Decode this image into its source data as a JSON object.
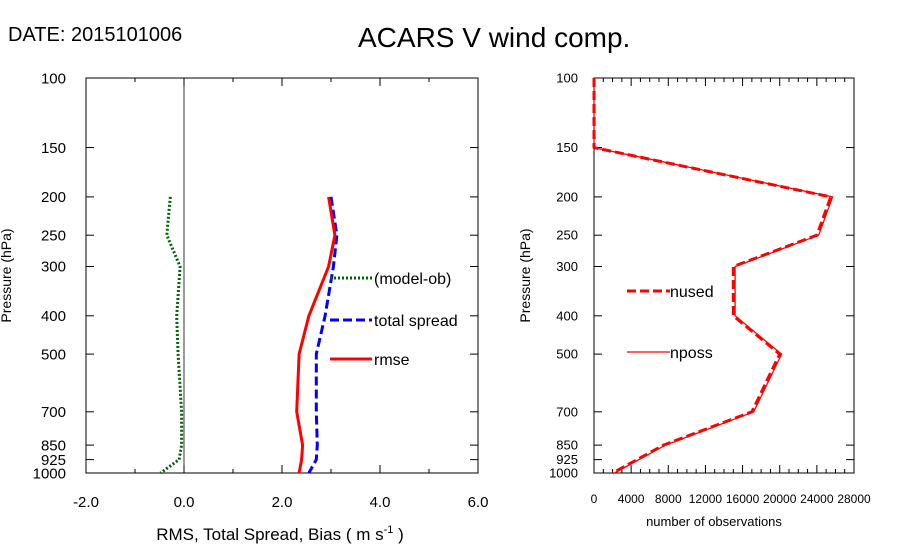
{
  "header": {
    "date_label": "DATE: 2015101006",
    "title": "ACARS V wind comp."
  },
  "chart_data": [
    {
      "type": "line",
      "title": "ACARS V wind comp.",
      "xlabel": "RMS, Total Spread, Bias ( m s",
      "xlabel_superscript": "-1",
      "xlabel_suffix": " )",
      "ylabel": "Pressure (hPa)",
      "xlim": [
        -2.0,
        6.0
      ],
      "ylim": [
        100,
        1000
      ],
      "y_scale": "log",
      "y_inverted": true,
      "x_ticks": [
        -2.0,
        0.0,
        2.0,
        4.0,
        6.0
      ],
      "x_tick_labels": [
        "-2.0",
        "0.0",
        "2.0",
        "4.0",
        "6.0"
      ],
      "y_ticks": [
        100,
        150,
        200,
        250,
        300,
        400,
        500,
        700,
        850,
        925,
        1000
      ],
      "y_tick_labels": [
        "100",
        "150",
        "200",
        "250",
        "300",
        "400",
        "500",
        "700",
        "850",
        "925",
        "1000"
      ],
      "zero_line": 0.0,
      "series": [
        {
          "name": "(model-ob)",
          "color": "#006400",
          "style": "dotted",
          "pressure": [
            200,
            250,
            300,
            400,
            500,
            700,
            850,
            925,
            1000
          ],
          "values": [
            -0.28,
            -0.35,
            -0.08,
            -0.15,
            -0.12,
            -0.05,
            -0.05,
            -0.1,
            -0.48
          ]
        },
        {
          "name": "total spread",
          "color": "#0000ff",
          "style": "dashed",
          "pressure": [
            200,
            250,
            300,
            400,
            500,
            700,
            850,
            925,
            1000
          ],
          "values": [
            3.0,
            3.12,
            3.05,
            2.88,
            2.7,
            2.7,
            2.72,
            2.7,
            2.55
          ]
        },
        {
          "name": "rmse",
          "color": "#ff0000",
          "style": "solid",
          "pressure": [
            200,
            250,
            300,
            400,
            500,
            700,
            850,
            925,
            1000
          ],
          "values": [
            2.95,
            3.08,
            2.95,
            2.55,
            2.35,
            2.3,
            2.42,
            2.4,
            2.35
          ]
        }
      ],
      "legend": [
        "(model-ob)",
        "total spread",
        "rmse"
      ]
    },
    {
      "type": "line",
      "xlabel": "number of observations",
      "ylabel": "Pressure (hPa)",
      "xlim": [
        0,
        28000
      ],
      "ylim": [
        100,
        1000
      ],
      "y_scale": "log",
      "y_inverted": true,
      "x_ticks": [
        0,
        4000,
        8000,
        12000,
        16000,
        20000,
        24000,
        28000
      ],
      "x_tick_labels": [
        "0",
        "4000",
        "8000",
        "12000",
        "16000",
        "20000",
        "24000",
        "28000"
      ],
      "y_ticks": [
        100,
        150,
        200,
        250,
        300,
        400,
        500,
        700,
        850,
        925,
        1000
      ],
      "y_tick_labels": [
        "100",
        "150",
        "200",
        "250",
        "300",
        "400",
        "500",
        "700",
        "850",
        "925",
        "1000"
      ],
      "series": [
        {
          "name": "nused",
          "color": "#ff0000",
          "style": "dashed",
          "pressure": [
            100,
            150,
            200,
            250,
            300,
            400,
            500,
            700,
            850,
            1000
          ],
          "values": [
            0,
            0,
            25500,
            24000,
            15000,
            15000,
            20000,
            17000,
            7500,
            2000
          ]
        },
        {
          "name": "nposs",
          "color": "#ff0000",
          "style": "solid",
          "pressure": [
            100,
            150,
            200,
            250,
            300,
            400,
            500,
            700,
            850,
            1000
          ],
          "values": [
            0,
            0,
            25700,
            24200,
            15200,
            15200,
            20200,
            17200,
            7700,
            2200
          ]
        }
      ],
      "legend": [
        "nused",
        "nposs"
      ]
    }
  ]
}
